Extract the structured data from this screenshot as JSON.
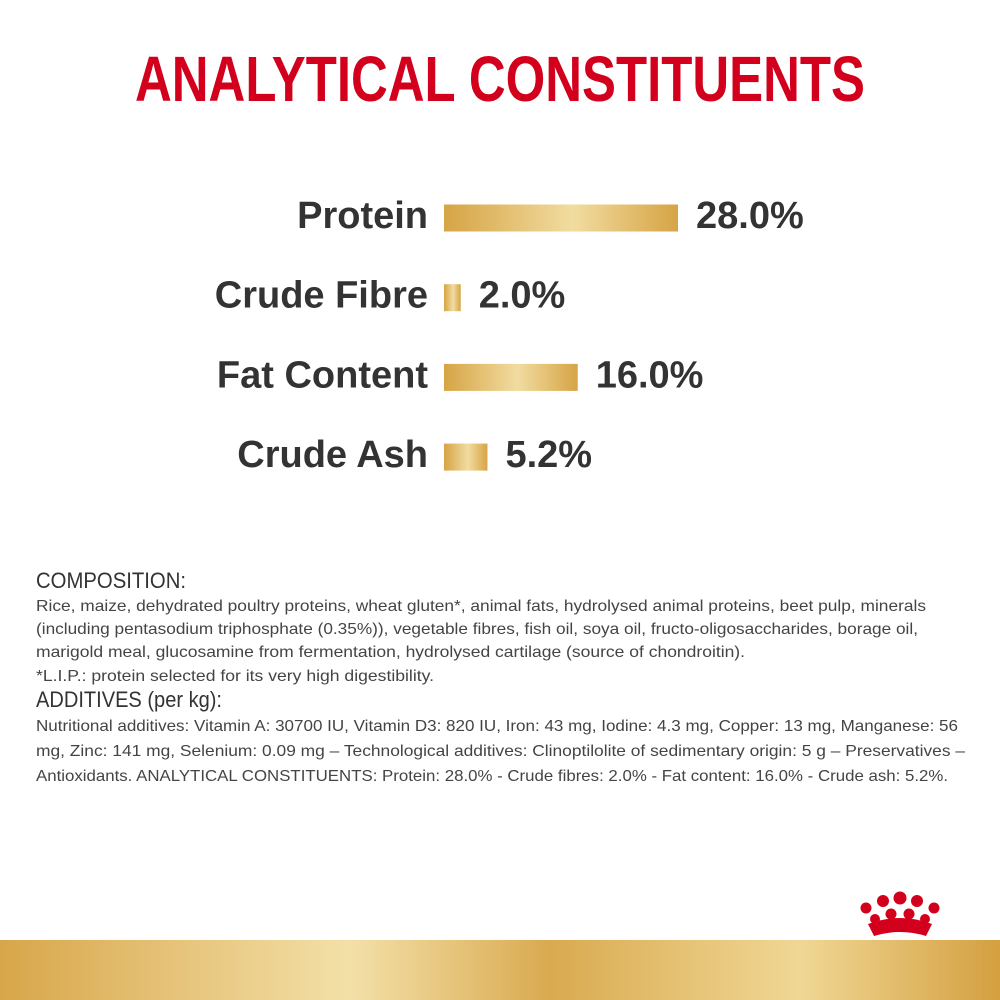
{
  "chart_data": {
    "type": "bar",
    "orientation": "horizontal",
    "title": "ANALYTICAL CONSTITUENTS",
    "categories": [
      "Protein",
      "Crude Fibre",
      "Fat Content",
      "Crude Ash"
    ],
    "values": [
      28.0,
      2.0,
      16.0,
      5.2
    ],
    "value_labels": [
      "28.0%",
      "2.0%",
      "16.0%",
      "5.2%"
    ],
    "color": "#d9a84a"
  },
  "composition": {
    "heading": "COMPOSITION:",
    "lines": [
      "Rice, maize, dehydrated poultry proteins, wheat gluten*, animal fats, hydrolysed animal proteins, beet pulp, minerals",
      "(including pentasodium triphosphate (0.35%)), vegetable fibres, fish oil, soya oil, fructo-oligosaccharides, borage oil,",
      "marigold meal, glucosamine from fermentation, hydrolysed cartilage (source of chondroitin).",
      "*L.I.P.: protein selected for its very high digestibility."
    ]
  },
  "additives": {
    "heading": "ADDITIVES (per kg):",
    "lines": [
      "Nutritional additives: Vitamin A: 30700 IU, Vitamin D3: 820 IU, Iron: 43 mg, Iodine: 4.3 mg, Copper: 13 mg, Manganese: 56",
      "mg, Zinc: 141 mg, Selenium: 0.09 mg – Technological additives: Clinoptilolite of sedimentary origin: 5 g – Preservatives –",
      "Antioxidants. ANALYTICAL CONSTITUENTS: Protein: 28.0% - Crude fibres: 2.0% - Fat content: 16.0% - Crude ash: 5.2%."
    ]
  }
}
